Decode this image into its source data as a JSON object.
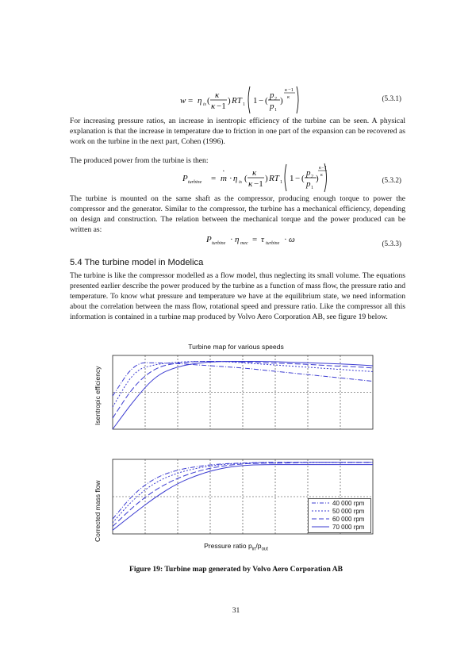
{
  "equations": {
    "eq1": {
      "lhs": "w",
      "number": "(5.3.1)"
    },
    "eq2": {
      "lhs": "P",
      "lhs_sub": "turbine",
      "number": "(5.3.2)"
    },
    "eq3": {
      "number": "(5.3.3)"
    }
  },
  "paragraphs": {
    "p1": "For increasing pressure ratios, an increase in isentropic efficiency of the turbine can be seen. A physical explanation is that the increase in temperature due to friction in one part of the expansion can be recovered as work on the turbine in the next part, Cohen (1996).",
    "p2": "The produced power from the turbine is then:",
    "p3": "The turbine is mounted on the same shaft as the compressor, producing enough torque to power the compressor and the generator. Similar to the compressor, the turbine has a mechanical efficiency, depending on design and construction. The relation between the mechanical torque and the power produced can be written as:",
    "p4": "The turbine is like the compressor modelled as a flow model, thus neglecting its small volume. The equations presented earlier describe the power produced by the turbine as a function of mass flow, the pressure ratio and temperature. To know what pressure and temperature we have at the equilibrium state, we need information about the correlation between the mass flow, rotational speed and pressure ratio. Like the compressor all this information is contained in a turbine map produced by Volvo Aero Corporation AB, see figure 19 below."
  },
  "section_heading": "5.4 The turbine model in Modelica",
  "figure": {
    "title": "Turbine map for various speeds",
    "caption": "Figure 19: Turbine map generated by Volvo Aero Corporation AB",
    "xlabel_main": "Pressure ratio p",
    "xlabel_sub1": "in",
    "xlabel_mid": "/p",
    "xlabel_sub2": "out",
    "top_ylabel": "Isentropic efficiency",
    "bottom_ylabel": "Corrected mass flow"
  },
  "chart_data": [
    {
      "type": "line",
      "title": "Turbine map for various speeds",
      "xlabel": "",
      "ylabel": "Isentropic efficiency",
      "x": [
        1.0,
        1.5,
        2.0,
        2.5,
        3.0,
        3.5,
        4.0,
        4.5,
        5.0,
        5.5,
        6.0,
        6.5,
        7.0
      ],
      "xlim": [
        1,
        7
      ],
      "ylim": [
        0,
        1
      ],
      "grid": true,
      "series": [
        {
          "name": "40 000 rpm",
          "style": "dashdot",
          "values": [
            0.45,
            0.9,
            0.9,
            0.89,
            0.87,
            0.85,
            0.83,
            0.8,
            0.77,
            0.74,
            0.71,
            0.68,
            0.65
          ]
        },
        {
          "name": "50 000 rpm",
          "style": "dotted",
          "values": [
            0.3,
            0.8,
            0.88,
            0.91,
            0.92,
            0.92,
            0.9,
            0.88,
            0.86,
            0.84,
            0.82,
            0.8,
            0.78
          ]
        },
        {
          "name": "60 000 rpm",
          "style": "dashed",
          "values": [
            0.15,
            0.6,
            0.84,
            0.9,
            0.92,
            0.92,
            0.91,
            0.9,
            0.89,
            0.88,
            0.86,
            0.85,
            0.83
          ]
        },
        {
          "name": "70 000 rpm",
          "style": "solid",
          "values": [
            0.0,
            0.4,
            0.73,
            0.85,
            0.9,
            0.92,
            0.92,
            0.92,
            0.91,
            0.9,
            0.89,
            0.88,
            0.86
          ]
        }
      ]
    },
    {
      "type": "line",
      "title": "",
      "xlabel": "Pressure ratio pin/pout",
      "ylabel": "Corrected mass flow",
      "x": [
        1.0,
        1.5,
        2.0,
        2.5,
        3.0,
        3.5,
        4.0,
        4.5,
        5.0,
        5.5,
        6.0,
        6.5,
        7.0
      ],
      "xlim": [
        1,
        7
      ],
      "ylim": [
        0,
        1
      ],
      "grid": true,
      "legend": "bottom-right",
      "series": [
        {
          "name": "40 000 rpm",
          "style": "dashdot",
          "values": [
            0.2,
            0.55,
            0.76,
            0.86,
            0.91,
            0.94,
            0.95,
            0.96,
            0.96,
            0.96,
            0.96,
            0.96,
            0.96
          ]
        },
        {
          "name": "50 000 rpm",
          "style": "dotted",
          "values": [
            0.15,
            0.48,
            0.7,
            0.82,
            0.89,
            0.93,
            0.95,
            0.96,
            0.96,
            0.96,
            0.96,
            0.96,
            0.96
          ]
        },
        {
          "name": "60 000 rpm",
          "style": "dashed",
          "values": [
            0.1,
            0.38,
            0.6,
            0.75,
            0.85,
            0.91,
            0.94,
            0.95,
            0.95,
            0.96,
            0.96,
            0.96,
            0.96
          ]
        },
        {
          "name": "70 000 rpm",
          "style": "solid",
          "values": [
            0.05,
            0.28,
            0.5,
            0.68,
            0.8,
            0.88,
            0.92,
            0.93,
            0.93,
            0.93,
            0.93,
            0.93,
            0.93
          ]
        }
      ]
    }
  ],
  "colors": {
    "line": "#3b3bd1",
    "grid": "#333333",
    "axis": "#222222"
  },
  "page_number": "31"
}
